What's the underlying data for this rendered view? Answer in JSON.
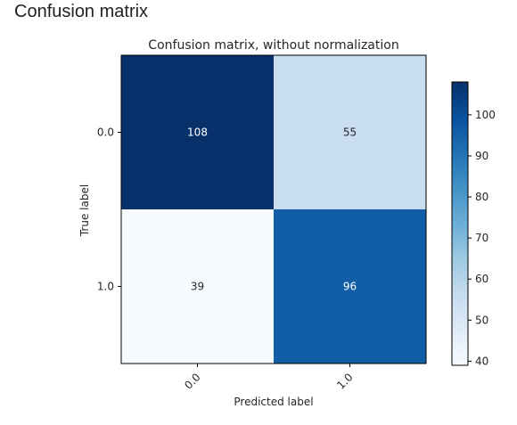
{
  "page": {
    "heading": "Confusion matrix"
  },
  "chart_data": {
    "type": "heatmap",
    "title": "Confusion matrix, without normalization",
    "xlabel": "Predicted label",
    "ylabel": "True label",
    "x_categories": [
      "0.0",
      "1.0"
    ],
    "y_categories": [
      "0.0",
      "1.0"
    ],
    "values": [
      [
        108,
        55
      ],
      [
        39,
        96
      ]
    ],
    "colormap": "Blues",
    "value_range": [
      39,
      108
    ],
    "colorbar_ticks": [
      40,
      50,
      60,
      70,
      80,
      90,
      100
    ],
    "x_tick_rotation_deg": 45,
    "grid": false,
    "text_colors": {
      "dark_cell": "#ffffff",
      "light_cell": "#262626"
    }
  }
}
